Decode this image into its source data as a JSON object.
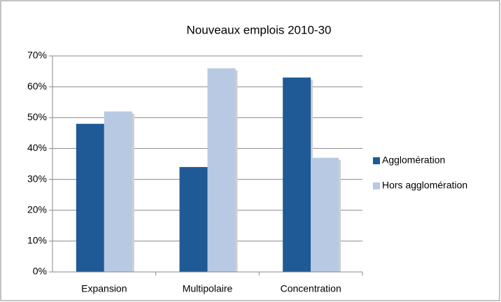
{
  "chart_data": {
    "type": "bar",
    "title": "Nouveaux emplois 2010-30",
    "categories": [
      "Expansion",
      "Multipolaire",
      "Concentration"
    ],
    "series": [
      {
        "name": "Agglomération",
        "color": "#1f5a96",
        "values": [
          48,
          34,
          63
        ]
      },
      {
        "name": "Hors agglomération",
        "color": "#b8c9e3",
        "values": [
          52,
          66,
          37
        ]
      }
    ],
    "ylim": [
      0,
      70
    ],
    "yticks": [
      {
        "value": 0,
        "label": "0%"
      },
      {
        "value": 10,
        "label": "10%"
      },
      {
        "value": 20,
        "label": "20%"
      },
      {
        "value": 30,
        "label": "30%"
      },
      {
        "value": 40,
        "label": "40%"
      },
      {
        "value": 50,
        "label": "50%"
      },
      {
        "value": 60,
        "label": "60%"
      },
      {
        "value": 70,
        "label": "70%"
      }
    ],
    "grid": true,
    "legend": "right"
  }
}
